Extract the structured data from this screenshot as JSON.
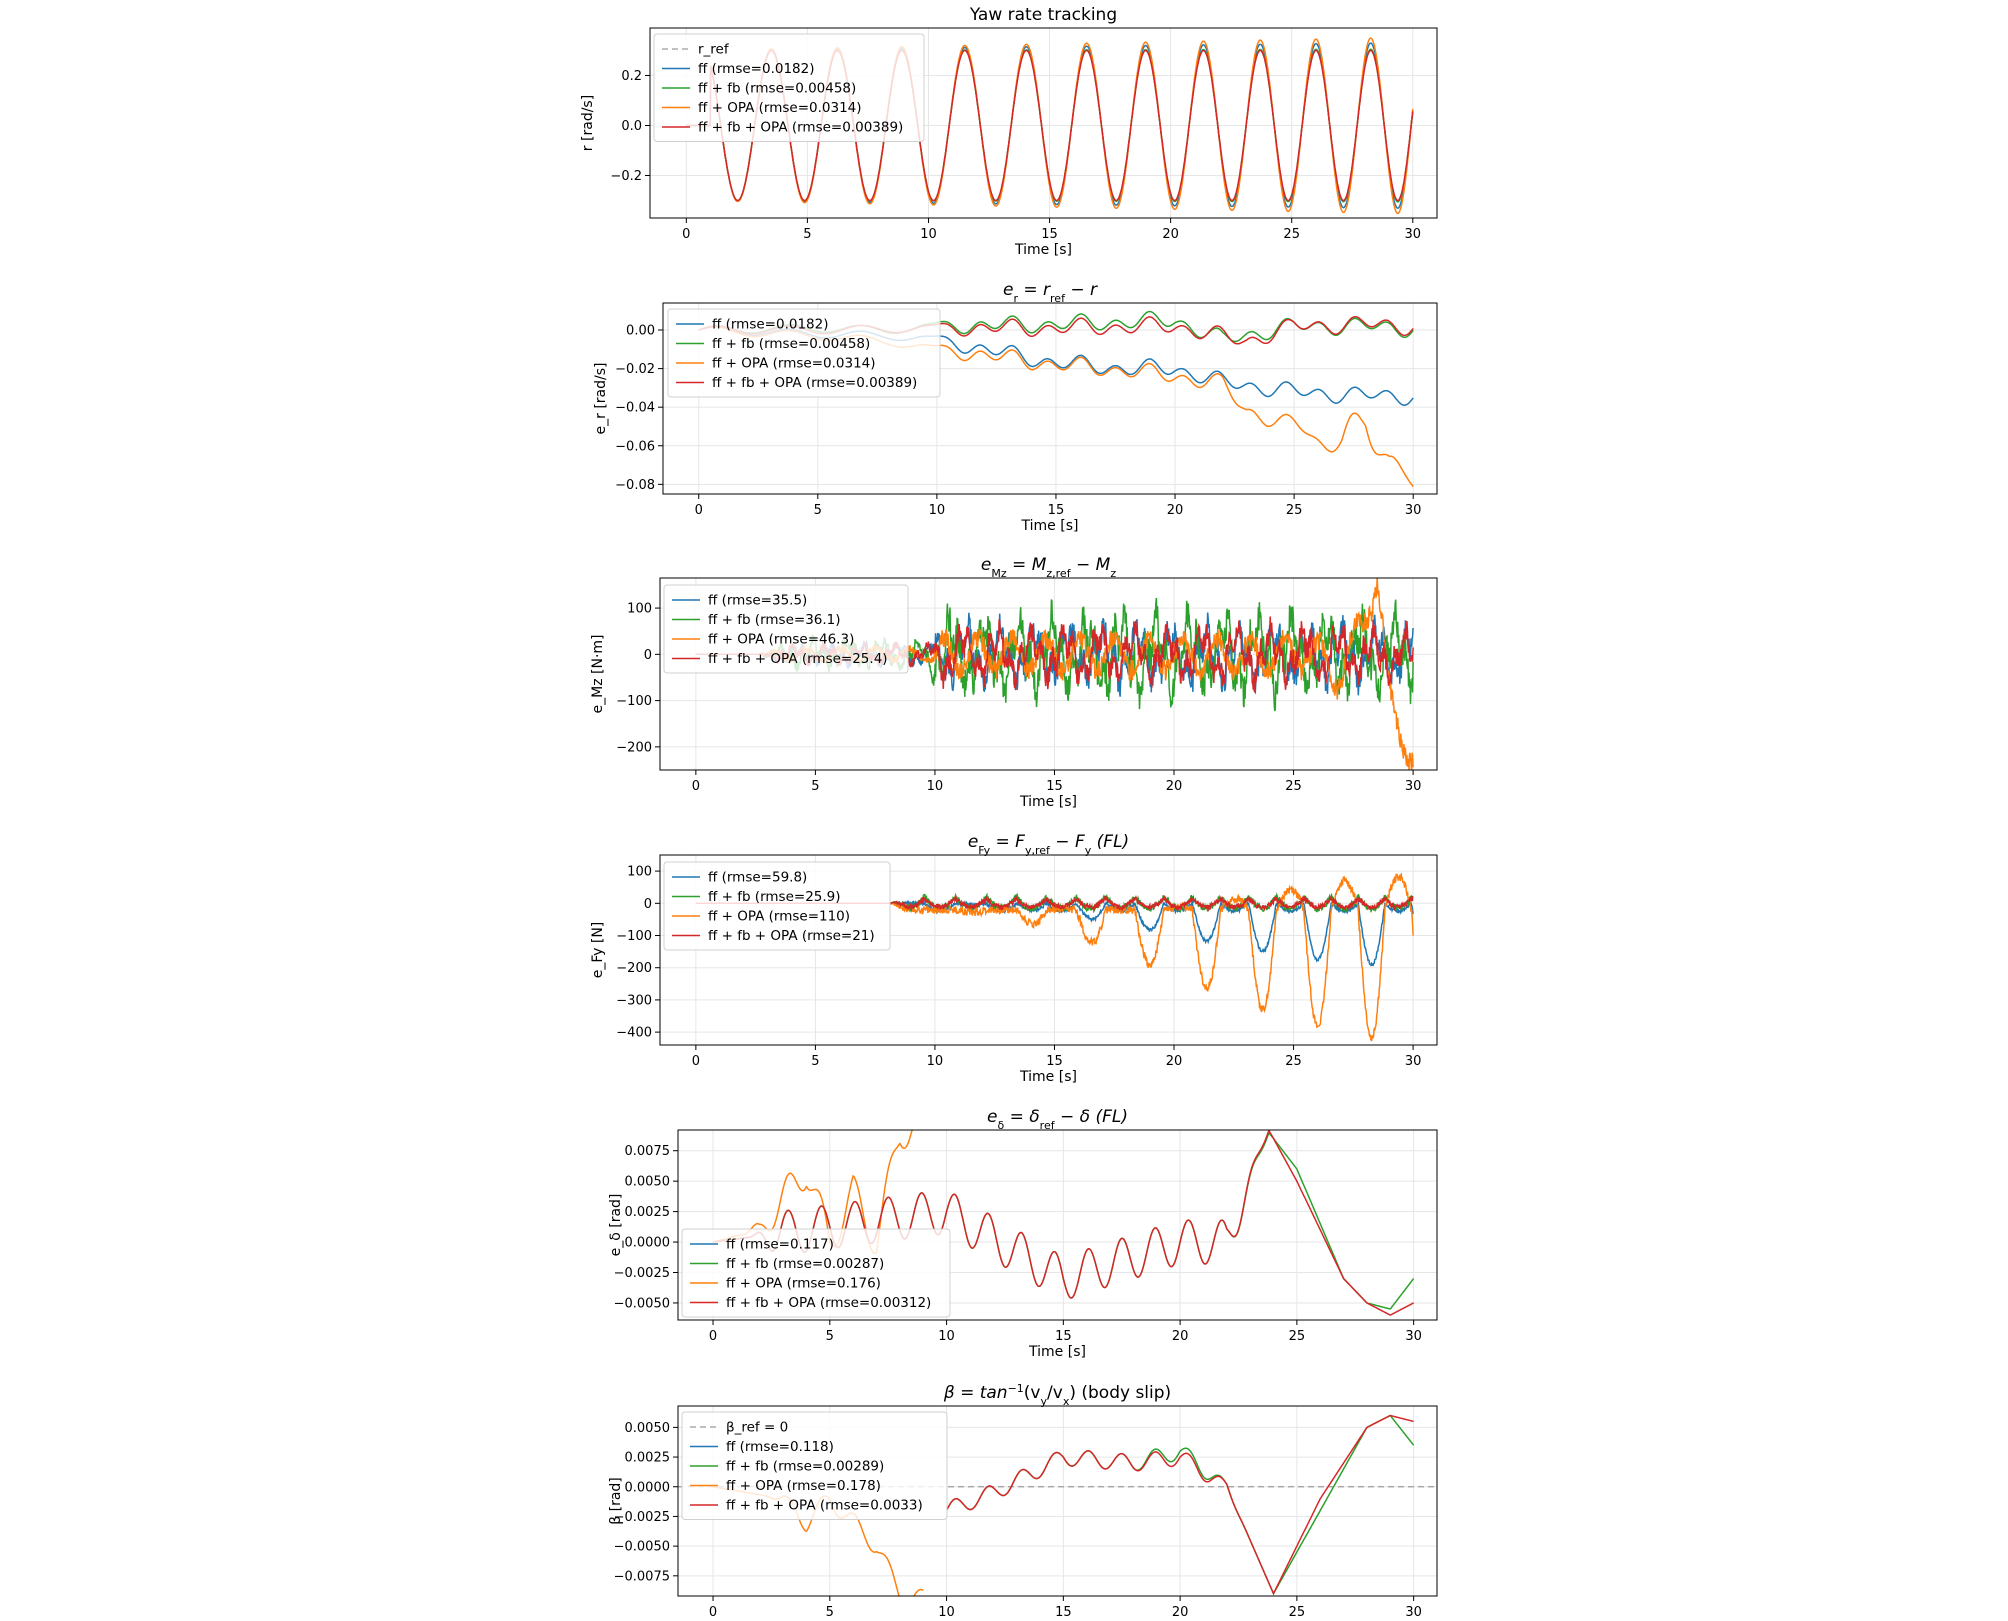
{
  "colors": {
    "ref": "#9a9a9a",
    "ff": "#1f77b4",
    "ff_fb": "#2ca02c",
    "ff_opa": "#ff7f0e",
    "ff_fb_opa": "#d62728"
  },
  "chart_data": [
    {
      "id": "yaw",
      "type": "line",
      "title": "Yaw rate tracking",
      "title_parts": [
        "Yaw rate tracking"
      ],
      "xlabel": "Time [s]",
      "ylabel": "r [rad/s]",
      "xlim": [
        -1.5,
        31
      ],
      "ylim": [
        -0.37,
        0.39
      ],
      "xticks": [
        0,
        5,
        10,
        15,
        20,
        25,
        30
      ],
      "xtick_labels": [
        "0",
        "5",
        "10",
        "15",
        "20",
        "25",
        "30"
      ],
      "yticks": [
        -0.2,
        0.0,
        0.2
      ],
      "ytick_labels": [
        "−0.2",
        "0.0",
        "0.2"
      ],
      "legend": [
        {
          "key": "ref",
          "label": "r_ref",
          "dashed": true
        },
        {
          "key": "ff",
          "label": "ff (rmse=0.0182)"
        },
        {
          "key": "ff_fb",
          "label": "ff + fb (rmse=0.00458)"
        },
        {
          "key": "ff_opa",
          "label": "ff + OPA (rmse=0.0314)"
        },
        {
          "key": "ff_fb_opa",
          "label": "ff + fb + OPA (rmse=0.00389)"
        }
      ],
      "series": [
        {
          "key": "ref",
          "name": "r_ref",
          "x": [
            0,
            30
          ],
          "amplitude": 0.3,
          "note": "sinusoid 0.3·sin(2π(0.35t+0.0017t²)) for t>1"
        },
        {
          "key": "ff",
          "name": "ff",
          "amplitude_growth": 0.03
        },
        {
          "key": "ff_fb",
          "name": "ff + fb",
          "amplitude_growth": 0.005
        },
        {
          "key": "ff_opa",
          "name": "ff + OPA",
          "amplitude_growth": 0.05
        },
        {
          "key": "ff_fb_opa",
          "name": "ff + fb + OPA",
          "amplitude_growth": 0.0
        }
      ]
    },
    {
      "id": "er",
      "type": "line",
      "title": "e_r = r_ref − r",
      "title_parts": [
        "e",
        "r",
        " = r",
        "ref",
        " − r"
      ],
      "xlabel": "Time [s]",
      "ylabel": "e_r [rad/s]",
      "xlim": [
        -1.5,
        31
      ],
      "ylim": [
        -0.085,
        0.014
      ],
      "xticks": [
        0,
        5,
        10,
        15,
        20,
        25,
        30
      ],
      "xtick_labels": [
        "0",
        "5",
        "10",
        "15",
        "20",
        "25",
        "30"
      ],
      "yticks": [
        -0.08,
        -0.06,
        -0.04,
        -0.02,
        0.0
      ],
      "ytick_labels": [
        "−0.08",
        "−0.06",
        "−0.04",
        "−0.02",
        "0.00"
      ],
      "legend": [
        {
          "key": "ff",
          "label": "ff (rmse=0.0182)"
        },
        {
          "key": "ff_fb",
          "label": "ff + fb (rmse=0.00458)"
        },
        {
          "key": "ff_opa",
          "label": "ff + OPA (rmse=0.0314)"
        },
        {
          "key": "ff_fb_opa",
          "label": "ff + fb + OPA (rmse=0.00389)"
        }
      ],
      "series": [
        {
          "key": "ff",
          "name": "ff",
          "x": [
            0,
            5,
            8,
            10,
            12,
            15,
            18,
            20,
            22,
            25,
            28,
            30
          ],
          "y": [
            0,
            -0.002,
            -0.003,
            -0.005,
            -0.01,
            -0.017,
            -0.02,
            -0.02,
            -0.027,
            -0.032,
            -0.034,
            -0.034
          ]
        },
        {
          "key": "ff_fb",
          "name": "ff + fb",
          "x": [
            0,
            5,
            8,
            10,
            15,
            20,
            22,
            25,
            28,
            30
          ],
          "y": [
            0,
            0.001,
            0,
            0.002,
            0.003,
            0.005,
            -0.005,
            0.002,
            0.002,
            0.001
          ]
        },
        {
          "key": "ff_opa",
          "name": "ff + OPA",
          "x": [
            0,
            5,
            8,
            10,
            12,
            15,
            18,
            20,
            22,
            23,
            25,
            27,
            28,
            29,
            30
          ],
          "y": [
            0,
            -0.003,
            -0.006,
            -0.01,
            -0.013,
            -0.018,
            -0.021,
            -0.024,
            -0.028,
            -0.042,
            -0.05,
            -0.06,
            -0.045,
            -0.07,
            -0.08
          ]
        },
        {
          "key": "ff_fb_opa",
          "name": "ff + fb + OPA",
          "x": [
            0,
            5,
            10,
            15,
            20,
            23,
            25,
            28,
            30
          ],
          "y": [
            0,
            0,
            0.001,
            0.001,
            0.002,
            -0.006,
            0.002,
            0.003,
            0.002
          ]
        }
      ]
    },
    {
      "id": "emz",
      "type": "line",
      "title": "e_Mz = M_z,ref − M_z",
      "title_parts": [
        "e",
        "Mz",
        " = M",
        "z,ref",
        " − M",
        "z"
      ],
      "xlabel": "Time [s]",
      "ylabel": "e_Mz [N·m]",
      "xlim": [
        -1.5,
        31
      ],
      "ylim": [
        -250,
        165
      ],
      "xticks": [
        0,
        5,
        10,
        15,
        20,
        25,
        30
      ],
      "xtick_labels": [
        "0",
        "5",
        "10",
        "15",
        "20",
        "25",
        "30"
      ],
      "yticks": [
        -200,
        -100,
        0,
        100
      ],
      "ytick_labels": [
        "−200",
        "−100",
        "0",
        "100"
      ],
      "legend": [
        {
          "key": "ff",
          "label": "ff (rmse=35.5)"
        },
        {
          "key": "ff_fb",
          "label": "ff + fb (rmse=36.1)"
        },
        {
          "key": "ff_opa",
          "label": "ff + OPA (rmse=46.3)"
        },
        {
          "key": "ff_fb_opa",
          "label": "ff + fb + OPA (rmse=25.4)"
        }
      ],
      "series": [
        {
          "key": "ff",
          "name": "ff",
          "noise_amplitude": 45
        },
        {
          "key": "ff_fb",
          "name": "ff + fb",
          "noise_amplitude": 60
        },
        {
          "key": "ff_opa",
          "name": "ff + OPA",
          "x": [
            0,
            20,
            25,
            27,
            28.5,
            29,
            30
          ],
          "y": [
            0,
            0,
            30,
            -50,
            160,
            -100,
            -230
          ]
        },
        {
          "key": "ff_fb_opa",
          "name": "ff + fb + OPA",
          "noise_amplitude": 40
        }
      ]
    },
    {
      "id": "efy",
      "type": "line",
      "title": "e_Fy = F_y,ref − F_y (FL)",
      "title_parts": [
        "e",
        "Fy",
        " = F",
        "y,ref",
        " − F",
        "y",
        "  (FL)"
      ],
      "xlabel": "Time [s]",
      "ylabel": "e_Fy [N]",
      "xlim": [
        -1.5,
        31
      ],
      "ylim": [
        -440,
        150
      ],
      "xticks": [
        0,
        5,
        10,
        15,
        20,
        25,
        30
      ],
      "xtick_labels": [
        "0",
        "5",
        "10",
        "15",
        "20",
        "25",
        "30"
      ],
      "yticks": [
        -400,
        -300,
        -200,
        -100,
        0,
        100
      ],
      "ytick_labels": [
        "−400",
        "−300",
        "−200",
        "−100",
        "0",
        "100"
      ],
      "legend": [
        {
          "key": "ff",
          "label": "ff (rmse=59.8)"
        },
        {
          "key": "ff_fb",
          "label": "ff + fb (rmse=25.9)"
        },
        {
          "key": "ff_opa",
          "label": "ff + OPA (rmse=110)"
        },
        {
          "key": "ff_fb_opa",
          "label": "ff + fb + OPA (rmse=21)"
        }
      ],
      "series": [
        {
          "key": "ff",
          "name": "ff",
          "min_value": -190
        },
        {
          "key": "ff_fb",
          "name": "ff + fb",
          "min_value": -60
        },
        {
          "key": "ff_opa",
          "name": "ff + OPA",
          "min_value": -420,
          "max_value": 120
        },
        {
          "key": "ff_fb_opa",
          "name": "ff + fb + OPA",
          "min_value": -40
        }
      ]
    },
    {
      "id": "edelta",
      "type": "line",
      "title": "e_δ = δ_ref − δ (FL)",
      "title_parts": [
        "e",
        "δ",
        " = δ",
        "ref",
        " − δ  (FL)"
      ],
      "xlabel": "Time [s]",
      "ylabel": "e_δ [rad]",
      "xlim": [
        -1.5,
        31
      ],
      "ylim": [
        -0.0064,
        0.0092
      ],
      "xticks": [
        0,
        5,
        10,
        15,
        20,
        25,
        30
      ],
      "xtick_labels": [
        "0",
        "5",
        "10",
        "15",
        "20",
        "25",
        "30"
      ],
      "yticks": [
        -0.005,
        -0.0025,
        0.0,
        0.0025,
        0.005,
        0.0075
      ],
      "ytick_labels": [
        "−0.0050",
        "−0.0025",
        "0.0000",
        "0.0025",
        "0.0050",
        "0.0075"
      ],
      "legend": [
        {
          "key": "ff",
          "label": "ff (rmse=0.117)"
        },
        {
          "key": "ff_fb",
          "label": "ff + fb (rmse=0.00287)"
        },
        {
          "key": "ff_opa",
          "label": "ff + OPA (rmse=0.176)"
        },
        {
          "key": "ff_fb_opa",
          "label": "ff + fb + OPA (rmse=0.00312)"
        }
      ],
      "series": [
        {
          "key": "ff",
          "name": "ff"
        },
        {
          "key": "ff_fb",
          "name": "ff + fb",
          "x": [
            0,
            10,
            15,
            20,
            22,
            23.8,
            25,
            27,
            28,
            29,
            30
          ],
          "y": [
            0,
            0.0025,
            -0.003,
            0,
            0,
            0.009,
            0.006,
            -0.003,
            -0.005,
            -0.0055,
            -0.003
          ]
        },
        {
          "key": "ff_opa",
          "name": "ff + OPA",
          "x": [
            0,
            2,
            4,
            5,
            6,
            7,
            8,
            8.5,
            9
          ],
          "y": [
            0,
            0.001,
            0.006,
            0,
            0.004,
            0,
            0.009,
            0.0095,
            0.0092
          ]
        },
        {
          "key": "ff_fb_opa",
          "name": "ff + fb + OPA",
          "x": [
            0,
            10,
            15,
            20,
            22,
            23.8,
            25,
            27,
            28,
            29,
            30
          ],
          "y": [
            0,
            0.0025,
            -0.003,
            0,
            0,
            0.0092,
            0.005,
            -0.003,
            -0.005,
            -0.006,
            -0.005
          ]
        }
      ]
    },
    {
      "id": "beta",
      "type": "line",
      "title": "β = tan⁻¹(v_y/v_x) (body slip)",
      "title_parts": [
        "β = tan",
        "−1",
        "(v",
        "y",
        "/v",
        "x",
        ") (body slip)"
      ],
      "xlabel": "Time [s]",
      "ylabel": "β [rad]",
      "xlim": [
        -1.5,
        31
      ],
      "ylim": [
        -0.0092,
        0.0068
      ],
      "xticks": [
        0,
        5,
        10,
        15,
        20,
        25,
        30
      ],
      "xtick_labels": [
        "0",
        "5",
        "10",
        "15",
        "20",
        "25",
        "30"
      ],
      "yticks": [
        -0.0075,
        -0.005,
        -0.0025,
        0.0,
        0.0025,
        0.005
      ],
      "ytick_labels": [
        "−0.0075",
        "−0.0050",
        "−0.0025",
        "0.0000",
        "0.0025",
        "0.0050"
      ],
      "legend": [
        {
          "key": "ref",
          "label": "β_ref = 0",
          "dashed": true
        },
        {
          "key": "ff",
          "label": "ff (rmse=0.118)"
        },
        {
          "key": "ff_fb",
          "label": "ff + fb (rmse=0.00289)"
        },
        {
          "key": "ff_opa",
          "label": "ff + OPA (rmse=0.178)"
        },
        {
          "key": "ff_fb_opa",
          "label": "ff + fb + OPA (rmse=0.0033)"
        }
      ],
      "series": [
        {
          "key": "ref",
          "name": "β_ref",
          "x": [
            -1.5,
            31
          ],
          "y": [
            0,
            0
          ]
        },
        {
          "key": "ff",
          "name": "ff"
        },
        {
          "key": "ff_fb",
          "name": "ff + fb",
          "x": [
            10,
            12,
            15,
            18,
            20,
            22,
            24,
            26,
            28,
            29,
            30
          ],
          "y": [
            -0.002,
            -0.0005,
            0.0025,
            0.002,
            0.003,
            0,
            -0.009,
            -0.002,
            0.005,
            0.006,
            0.0035
          ]
        },
        {
          "key": "ff_opa",
          "name": "ff + OPA",
          "x": [
            0,
            3,
            4,
            5,
            6,
            7,
            8,
            9
          ],
          "y": [
            0,
            -0.001,
            -0.003,
            -0.001,
            -0.003,
            -0.005,
            -0.009,
            -0.0095
          ]
        },
        {
          "key": "ff_fb_opa",
          "name": "ff + fb + OPA",
          "x": [
            10,
            12,
            15,
            18,
            20,
            22,
            24,
            26,
            28,
            29,
            30
          ],
          "y": [
            -0.002,
            -0.0005,
            0.0025,
            0.002,
            0.0025,
            0,
            -0.009,
            -0.001,
            0.005,
            0.006,
            0.0055
          ]
        }
      ]
    }
  ]
}
